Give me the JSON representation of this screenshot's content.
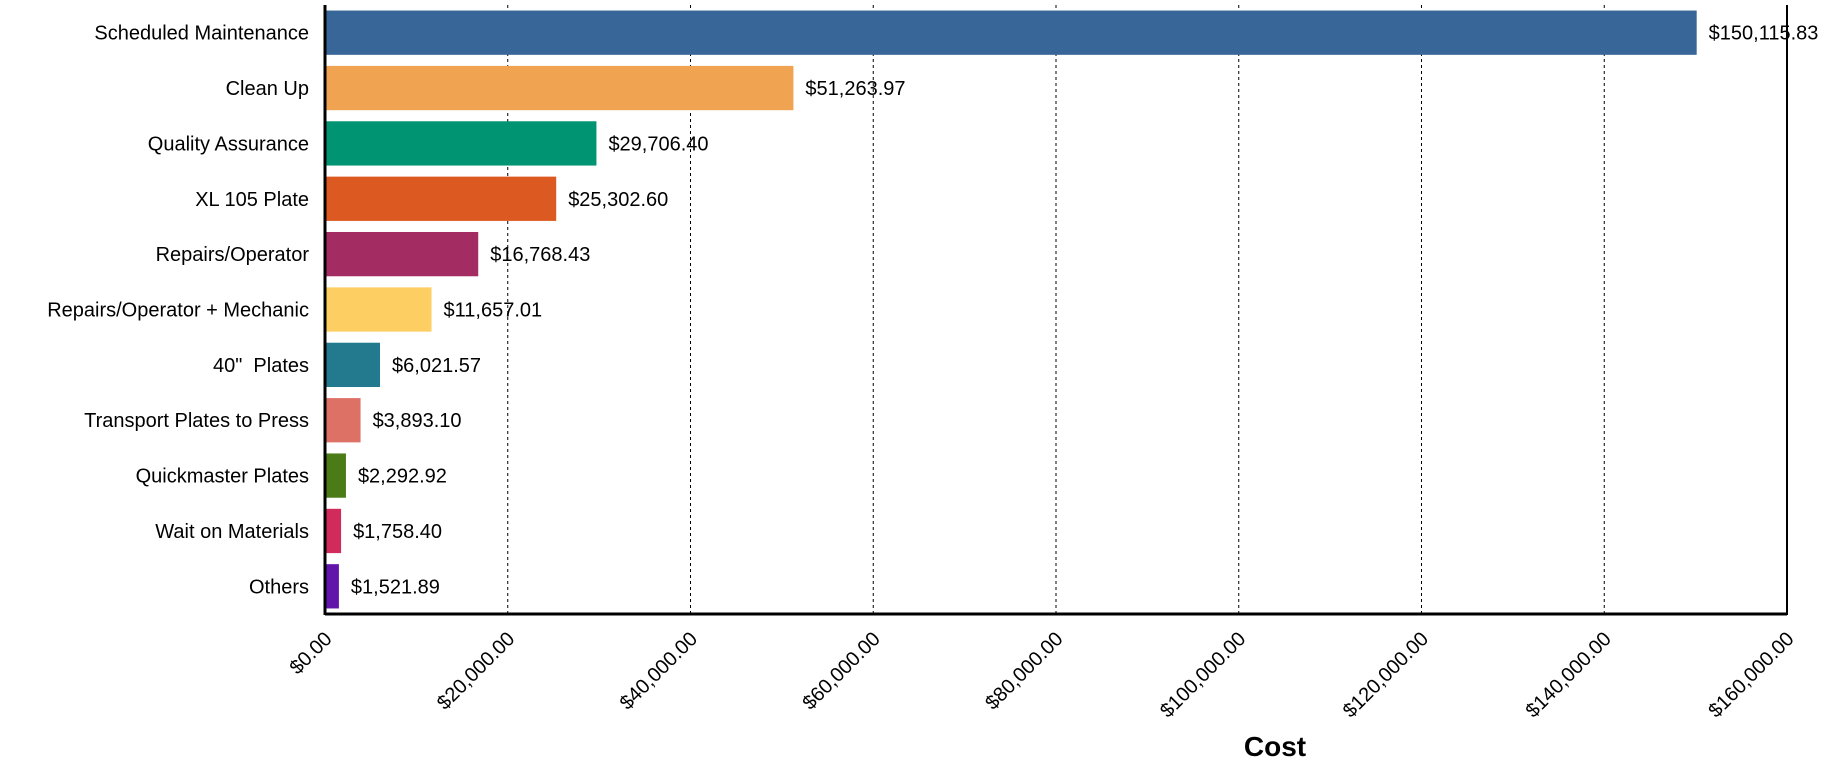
{
  "chart_data": {
    "type": "bar",
    "orientation": "horizontal",
    "categories": [
      "Scheduled Maintenance",
      "Clean Up",
      "Quality Assurance",
      "XL 105 Plate",
      "Repairs/Operator",
      "Repairs/Operator + Mechanic",
      "40\"  Plates",
      "Transport Plates to Press",
      "Quickmaster Plates",
      "Wait on Materials",
      "Others"
    ],
    "values": [
      150115.83,
      51263.97,
      29706.4,
      25302.6,
      16768.43,
      11657.01,
      6021.57,
      3893.1,
      2292.92,
      1758.4,
      1521.89
    ],
    "value_labels": [
      "$150,115.83",
      "$51,263.97",
      "$29,706.40",
      "$25,302.60",
      "$16,768.43",
      "$11,657.01",
      "$6,021.57",
      "$3,893.10",
      "$2,292.92",
      "$1,758.40",
      "$1,521.89"
    ],
    "colors": [
      "#386698",
      "#f0a351",
      "#009473",
      "#dc5a21",
      "#a32d63",
      "#fdcf63",
      "#237a8f",
      "#dd7166",
      "#4b7b17",
      "#d02b5b",
      "#6115aa"
    ],
    "xlabel": "Cost",
    "ylabel": "",
    "xlim": [
      0,
      160000
    ],
    "x_ticks": [
      0,
      20000,
      40000,
      60000,
      80000,
      100000,
      120000,
      140000,
      160000
    ],
    "x_tick_labels": [
      "$0.00",
      "$20,000.00",
      "$40,000.00",
      "$60,000.00",
      "$80,000.00",
      "$100,000.00",
      "$120,000.00",
      "$140,000.00",
      "$160,000.00"
    ],
    "grid": "vertical-dashed",
    "legend": "none"
  }
}
